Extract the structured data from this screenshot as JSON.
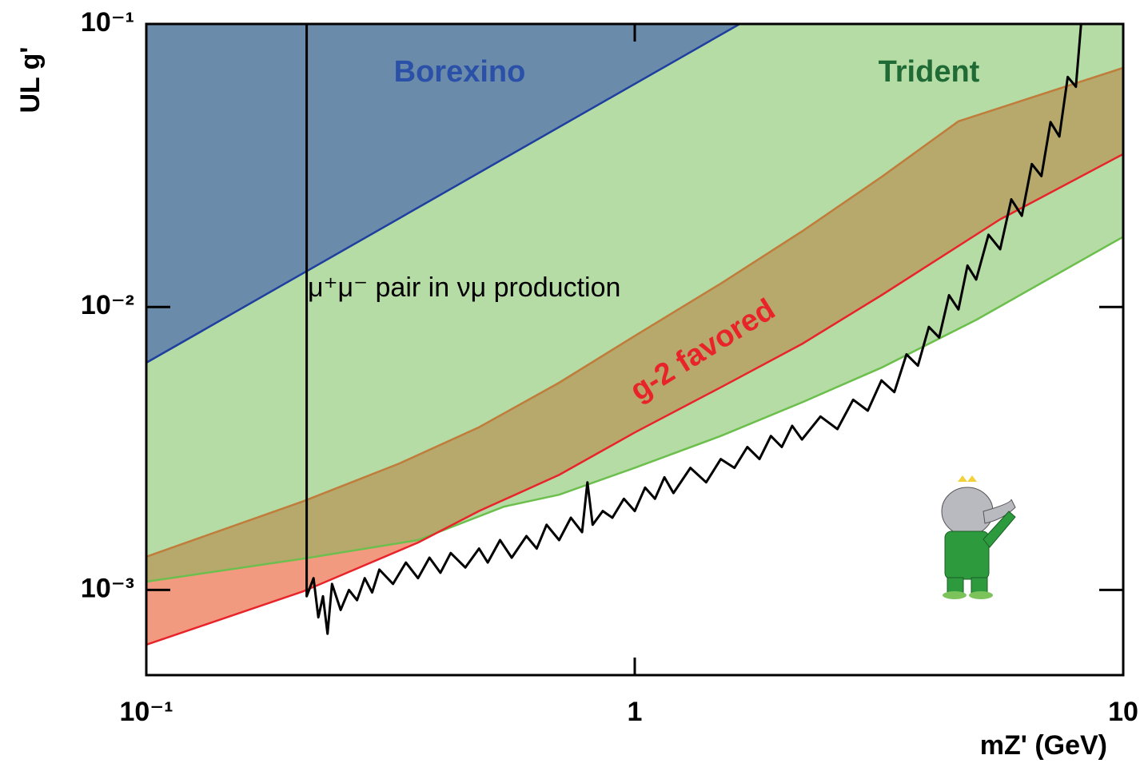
{
  "chart_data": {
    "type": "line",
    "xscale": "log",
    "yscale": "log",
    "xlabel": "mZ' (GeV)",
    "ylabel": "UL  g'",
    "xlim": [
      0.1,
      10
    ],
    "ylim": [
      0.0005,
      0.1
    ],
    "xticks": [
      {
        "value": 0.1,
        "label": "10⁻¹"
      },
      1,
      10
    ],
    "yticks": [
      {
        "value": 0.001,
        "label": "10⁻³"
      },
      {
        "value": 0.01,
        "label": "10⁻²"
      },
      {
        "value": 0.1,
        "label": "10⁻¹"
      }
    ],
    "annotations": [
      "Borexino",
      "Trident",
      "g-2 favored",
      "μ⁺μ⁻ pair in νμ production"
    ],
    "series": [
      {
        "color": "#1f3fa0",
        "fill": "#6b8bab",
        "x": [
          0.1,
          1.64
        ],
        "values": [
          0.00635,
          0.1
        ]
      },
      {
        "color": "#6cbf4c",
        "fill": "#b5dca5",
        "x": [
          0.1,
          0.21,
          0.36,
          0.54,
          0.7,
          1,
          1.5,
          2.2,
          3.2,
          5,
          10
        ],
        "values": [
          0.00107,
          0.00129,
          0.0015,
          0.00197,
          0.00217,
          0.0027,
          0.0035,
          0.0046,
          0.0061,
          0.009,
          0.0177
        ]
      },
      {
        "color": "#c07c3a",
        "fill": "#b7a86c",
        "x": [
          0.1,
          0.21,
          0.33,
          0.48,
          0.7,
          1,
          1.5,
          2.2,
          3.2,
          4.6,
          10
        ],
        "values": [
          0.00131,
          0.00206,
          0.0028,
          0.00376,
          0.0054,
          0.0079,
          0.0121,
          0.0185,
          0.0288,
          0.0453,
          0.07
        ]
      },
      {
        "color": "#e8242a",
        "fill": "#f29a80",
        "x": [
          0.1,
          0.21,
          0.36,
          0.48,
          0.7,
          1,
          1.5,
          2.2,
          3.2,
          5.6,
          10
        ],
        "values": [
          0.00064,
          0.00099,
          0.00147,
          0.0019,
          0.00255,
          0.0036,
          0.0052,
          0.0074,
          0.011,
          0.0204,
          0.0347
        ]
      },
      {
        "color": "#000000",
        "x": [
          0.213,
          0.213,
          0.22,
          0.225,
          0.23,
          0.235,
          0.24,
          0.25,
          0.26,
          0.27,
          0.28,
          0.29,
          0.3,
          0.32,
          0.34,
          0.36,
          0.38,
          0.4,
          0.42,
          0.45,
          0.48,
          0.5,
          0.53,
          0.56,
          0.6,
          0.63,
          0.66,
          0.7,
          0.74,
          0.78,
          0.8,
          0.82,
          0.86,
          0.9,
          0.95,
          1.0,
          1.05,
          1.1,
          1.15,
          1.2,
          1.3,
          1.4,
          1.5,
          1.6,
          1.7,
          1.8,
          1.9,
          2.0,
          2.1,
          2.2,
          2.4,
          2.6,
          2.8,
          3.0,
          3.2,
          3.4,
          3.6,
          3.8,
          4.0,
          4.2,
          4.4,
          4.6,
          4.8,
          5.0,
          5.3,
          5.6,
          5.9,
          6.2,
          6.5,
          6.8,
          7.1,
          7.4,
          7.7,
          8.0,
          8.2
        ],
        "values": [
          0.1,
          0.00095,
          0.0011,
          0.0008,
          0.00095,
          0.0007,
          0.00105,
          0.00085,
          0.001,
          0.00092,
          0.0011,
          0.00098,
          0.00118,
          0.00105,
          0.00125,
          0.0011,
          0.0013,
          0.00115,
          0.00135,
          0.0012,
          0.0014,
          0.00125,
          0.0015,
          0.0013,
          0.00155,
          0.0014,
          0.0017,
          0.0015,
          0.0018,
          0.0016,
          0.0024,
          0.0017,
          0.0019,
          0.0018,
          0.0021,
          0.0019,
          0.0023,
          0.0021,
          0.0025,
          0.0022,
          0.0027,
          0.0024,
          0.0029,
          0.0027,
          0.0032,
          0.0029,
          0.0035,
          0.0032,
          0.0038,
          0.0034,
          0.0041,
          0.0037,
          0.0047,
          0.0043,
          0.0055,
          0.005,
          0.0068,
          0.0062,
          0.0085,
          0.0078,
          0.011,
          0.0098,
          0.014,
          0.0125,
          0.018,
          0.016,
          0.024,
          0.021,
          0.032,
          0.029,
          0.045,
          0.04,
          0.065,
          0.06,
          0.1
        ]
      }
    ]
  }
}
